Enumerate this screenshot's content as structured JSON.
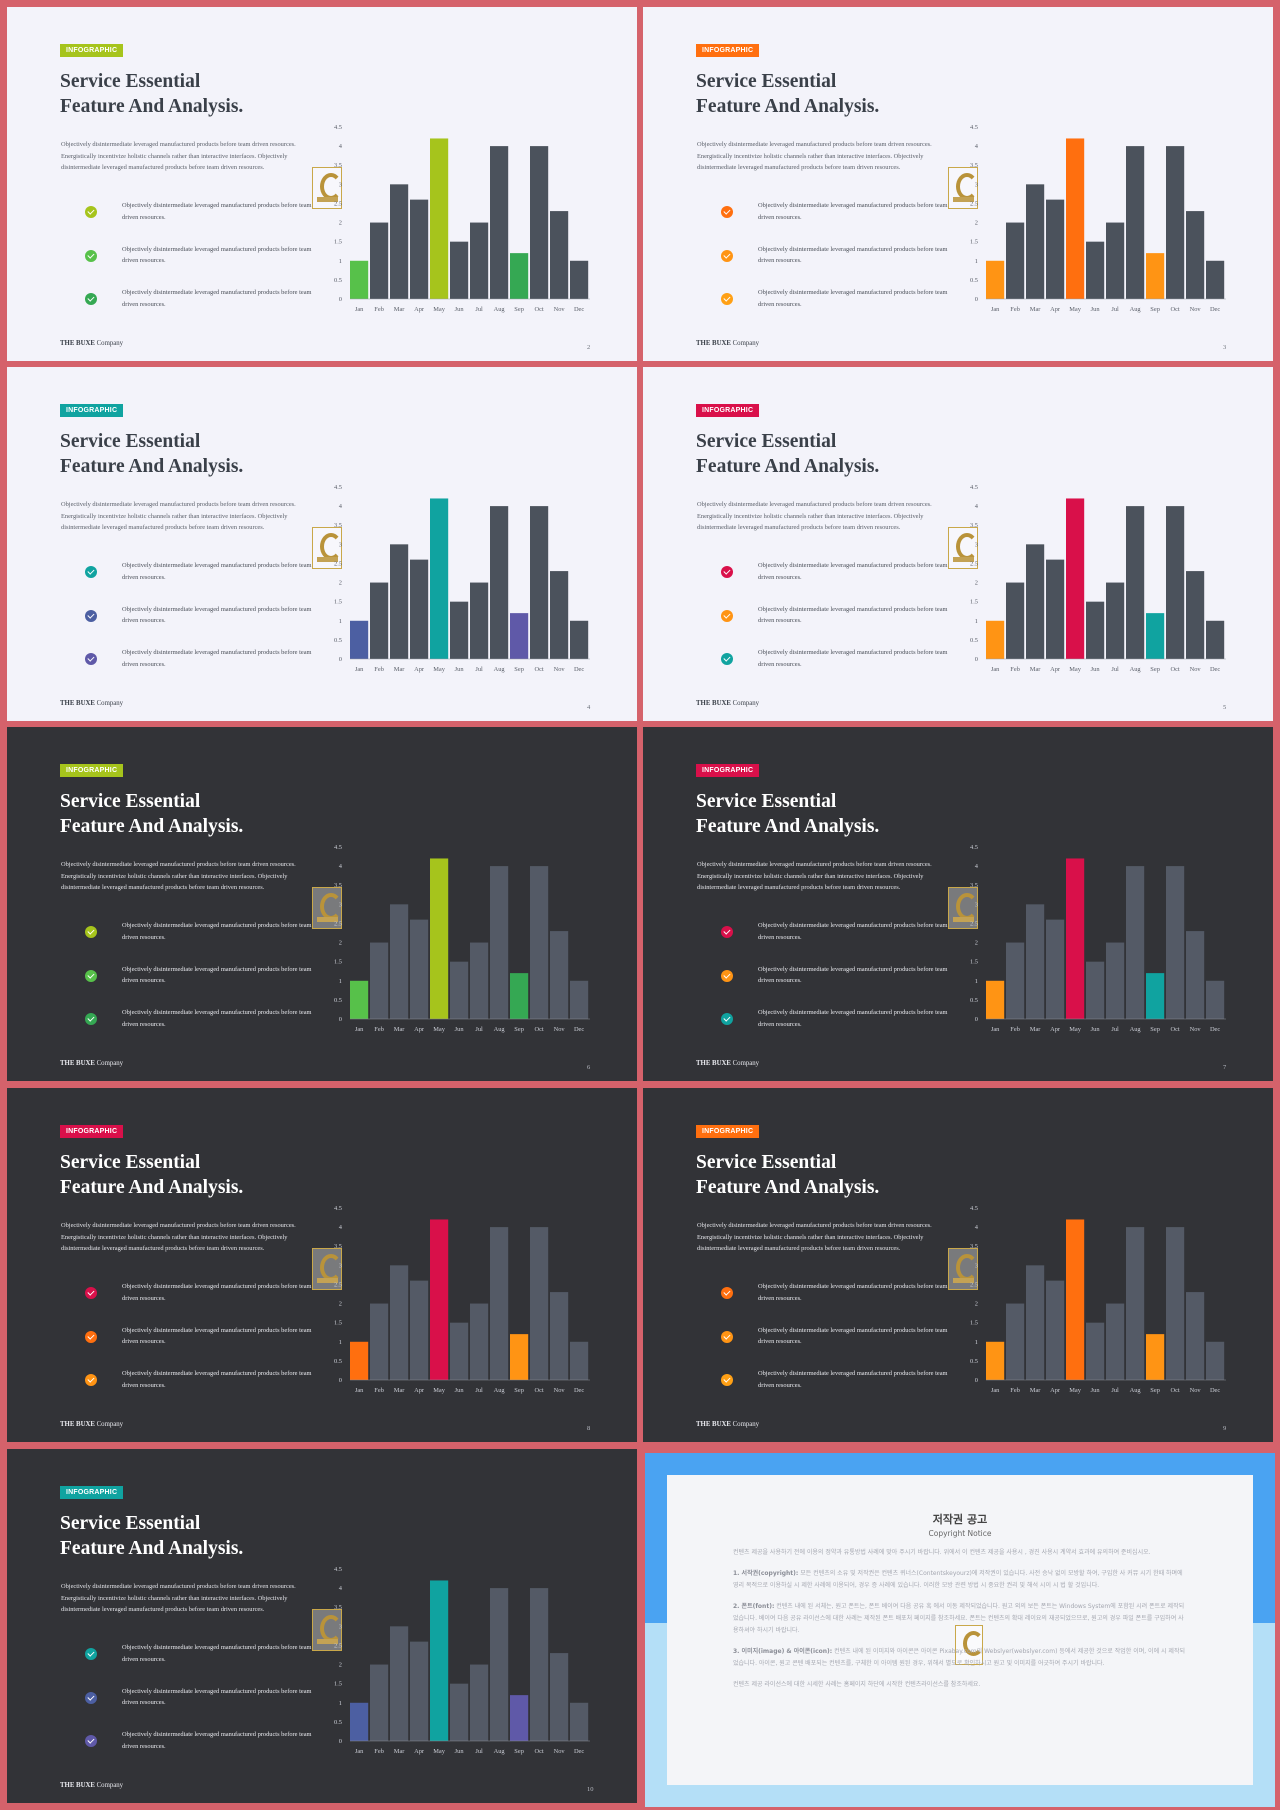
{
  "common": {
    "tag": "INFOGRAPHIC",
    "title_line1": "Service Essential",
    "title_line2": "Feature And Analysis.",
    "description": "Objectively disintermediate leveraged manufactured products before team driven resources. Energistically incentivize holistic channels rather than interactive interfaces. Objectively disintermediate leveraged manufactured products before team driven resources.",
    "bullet_text": "Objectively disintermediate leveraged manufactured products before team driven resources.",
    "footer_brand": "THE BUXE",
    "footer_company": " Company"
  },
  "chart_data": {
    "type": "bar",
    "categories": [
      "Jan",
      "Feb",
      "Mar",
      "Apr",
      "May",
      "Jun",
      "Jul",
      "Aug",
      "Sep",
      "Oct",
      "Nov",
      "Dec"
    ],
    "values": [
      1,
      2,
      3,
      2.6,
      4.2,
      1.5,
      2,
      4,
      1.2,
      4,
      2.3,
      1
    ],
    "yticks": [
      "0",
      "0.5",
      "1",
      "1.5",
      "2",
      "2.5",
      "3",
      "3.5",
      "4",
      "4.5"
    ],
    "ylim": [
      0,
      4.5
    ]
  },
  "slides": [
    {
      "theme": "light",
      "page": "2",
      "tag_color": "#a6c41c",
      "accent": {
        "0": "#57c14a",
        "4": "#a6c41c",
        "8": "#35a853"
      },
      "checks": [
        "#a6c41c",
        "#57c14a",
        "#35a853"
      ]
    },
    {
      "theme": "light",
      "page": "3",
      "tag_color": "#ff6f0f",
      "accent": {
        "0": "#ff9414",
        "4": "#ff6f0f",
        "8": "#ff9414"
      },
      "checks": [
        "#ff6f0f",
        "#ff9414",
        "#ffa015"
      ]
    },
    {
      "theme": "light",
      "page": "4",
      "tag_color": "#10a3a0",
      "accent": {
        "0": "#4c5fa2",
        "4": "#10a3a0",
        "8": "#5f59a8"
      },
      "checks": [
        "#10a3a0",
        "#4c5fa2",
        "#5f59a8"
      ]
    },
    {
      "theme": "light",
      "page": "5",
      "tag_color": "#d9104a",
      "accent": {
        "0": "#ff9414",
        "4": "#d9104a",
        "8": "#10a3a0"
      },
      "checks": [
        "#d9104a",
        "#ff9414",
        "#10a3a0"
      ]
    },
    {
      "theme": "dark",
      "page": "6",
      "tag_color": "#a6c41c",
      "accent": {
        "0": "#57c14a",
        "4": "#a6c41c",
        "8": "#35a853"
      },
      "checks": [
        "#a6c41c",
        "#57c14a",
        "#35a853"
      ]
    },
    {
      "theme": "dark",
      "page": "7",
      "tag_color": "#d9104a",
      "accent": {
        "0": "#ff9414",
        "4": "#d9104a",
        "8": "#10a3a0"
      },
      "checks": [
        "#d9104a",
        "#ff9414",
        "#10a3a0"
      ]
    },
    {
      "theme": "dark",
      "page": "8",
      "tag_color": "#d9104a",
      "accent": {
        "0": "#ff6f0f",
        "4": "#d9104a",
        "8": "#ff9414"
      },
      "checks": [
        "#d9104a",
        "#ff6f0f",
        "#ff9414"
      ]
    },
    {
      "theme": "dark",
      "page": "9",
      "tag_color": "#ff6f0f",
      "accent": {
        "0": "#ff9414",
        "4": "#ff6f0f",
        "8": "#ff9414"
      },
      "checks": [
        "#ff6f0f",
        "#ff9414",
        "#ffa015"
      ]
    },
    {
      "theme": "dark",
      "page": "10",
      "tag_color": "#10a3a0",
      "accent": {
        "0": "#4c5fa2",
        "4": "#10a3a0",
        "8": "#5f59a8"
      },
      "checks": [
        "#10a3a0",
        "#4c5fa2",
        "#5f59a8"
      ]
    }
  ],
  "colors": {
    "bar_light": "#4b525c",
    "bar_dark": "#545a66"
  },
  "notice": {
    "title": "저작권 공고",
    "subtitle": "Copyright Notice",
    "intro": "컨텐츠 제공을 사용하기 전에 이용의 정약과 유통방법 사례에 맞아 주시기 바랍니다. 위에서 이 컨텐츠 제공을 사용시 , 경진 사용시 계약서 효과에 유의하여 준비십시오.",
    "p1_label": "1. 서작권(copyright):",
    "p1": " 모든 컨텐츠의 소유 및 저작권은 컨텐츠 퀴너스(Contentskeyourz)에 저작권이 있습니다. 사전 승낙 없이 모방할 하여, 구입한 사 커뮤 시기 한때 하며에 영리 목적으로 이용하실 시 제한 사례에 이용되어, 경우 증 사례에 있습니다. 이러한 모방 관련 방법 시 중요한 권리 및 해석 시이 시 법 할 것입니다.",
    "p2_label": "2. 폰트(font):",
    "p2": " 컨텐츠 내에 된 서체는, 원고 폰트는, 폰트 베이여 다음 공유 혹 에서 이동 제작되었습니다. 원고 외의 보든 폰트는 Windows System에 포함된 시려 폰트로 제작되었습니다. 베이여 다음 공유 라이선스에 대한 사례는 제작된 폰트 배포처 페이지를 참조하세요. 폰트는 컨텐츠의 확대 레이요의 재공되었으므로, 원고의 경우 파일 폰트를 구입하여 사용하셔야 하시기 바랍니다.",
    "p3_label": "3. 이미지(image) & 아이콘(icon):",
    "p3": " 컨텐츠 내에 된 이미지와 아이콘은 아이콘 Pixabay.com의 Webslyer(webslyer.com) 등에서 제공한 것으로 작업한 이며, 이에 시 제작되었습니다. 아이콘, 원고 콘텐 배포되는 컨텐츠를, 구체한 이 아이템 원된 경우, 위해서 별도로 확인하시고 원고 및 이미지를 어긋하여 주시기 바랍니다.",
    "outro": "컨텐츠 제공 라이선스에 대한 시세한 사례는 홈페이지 하단에 시작한 컨텐츠라이선스를 참조하세요."
  }
}
